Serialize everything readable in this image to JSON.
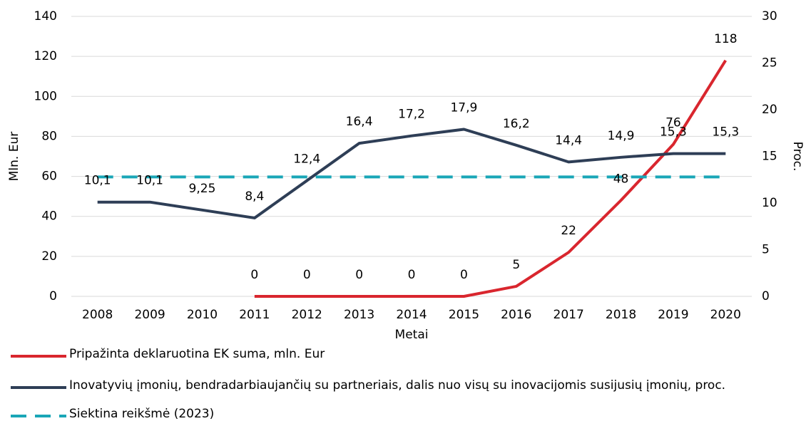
{
  "chart_data": {
    "type": "line",
    "categories": [
      "2008",
      "2009",
      "2010",
      "2011",
      "2012",
      "2013",
      "2014",
      "2015",
      "2016",
      "2017",
      "2018",
      "2019",
      "2020"
    ],
    "xlabel": "Metai",
    "ylabel": "Mln. Eur",
    "y2label": "Proc.",
    "ylim": [
      0,
      140
    ],
    "yticks": [
      0,
      20,
      40,
      60,
      80,
      100,
      120,
      140
    ],
    "y2lim": [
      0,
      30
    ],
    "y2ticks": [
      0,
      5,
      10,
      15,
      20,
      25,
      30
    ],
    "grid": true,
    "legend": "bottom",
    "series": [
      {
        "name": "Pripažinta deklaruotina EK suma, mln. Eur",
        "color": "#d9262e",
        "style": "solid",
        "axis": "y",
        "values": [
          null,
          null,
          null,
          0,
          0,
          0,
          0,
          0,
          5,
          22,
          48,
          76,
          118
        ]
      },
      {
        "name": "Inovatyvių įmonių, bendradarbiaujančių su partneriais, dalis nuo visų su inovacijomis susijusių įmonių, proc.",
        "color": "#2e3e56",
        "style": "solid",
        "axis": "y2",
        "values": [
          10.1,
          10.1,
          9.25,
          8.4,
          12.4,
          16.4,
          17.2,
          17.9,
          16.2,
          14.4,
          14.9,
          15.3,
          15.3
        ],
        "value_labels": [
          "10,1",
          "10,1",
          "9,25",
          "8,4",
          "12,4",
          "16,4",
          "17,2",
          "17,9",
          "16,2",
          "14,4",
          "14,9",
          "15,3",
          "15,3"
        ]
      },
      {
        "name": "Siektina reikšmė (2023)",
        "color": "#1aa6b7",
        "style": "dashed",
        "axis": "y2",
        "values": [
          12.8,
          12.8,
          12.8,
          12.8,
          12.8,
          12.8,
          12.8,
          12.8,
          12.8,
          12.8,
          12.8,
          12.8,
          12.8
        ]
      }
    ]
  }
}
